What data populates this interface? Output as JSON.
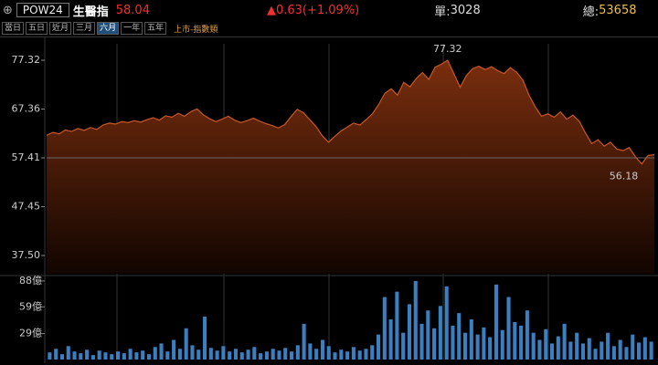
{
  "header": {
    "code": "POW24",
    "name": "生醫指",
    "price": "58.04",
    "change": "▲0.63(+1.09%)",
    "unit_label": "單:",
    "unit_value": "3028",
    "total_label": "總:",
    "total_value": "53658"
  },
  "toolbar": {
    "buttons": [
      "當日",
      "五日",
      "近月",
      "三月",
      "六月",
      "一年",
      "五年"
    ],
    "active": 4,
    "market": "上市-指數類"
  },
  "chart_data": [
    {
      "type": "area",
      "color": "#c8562a",
      "ylim": [
        33.78,
        80.67
      ],
      "yticks": [
        77.32,
        67.36,
        57.41,
        47.45,
        {
          "value": 37.5,
          "label": "37.50"
        }
      ],
      "baseline": 57.41,
      "values": [
        62.0,
        62.6,
        62.3,
        63.1,
        62.8,
        63.4,
        63.0,
        63.6,
        63.2,
        64.1,
        64.5,
        64.3,
        64.8,
        64.6,
        65.0,
        64.7,
        65.2,
        65.6,
        65.1,
        66.0,
        65.7,
        66.5,
        65.9,
        66.8,
        67.4,
        66.2,
        65.4,
        64.8,
        65.3,
        65.9,
        65.1,
        64.6,
        65.0,
        65.5,
        64.9,
        64.4,
        64.0,
        63.5,
        64.2,
        65.8,
        67.3,
        66.6,
        65.2,
        63.8,
        61.9,
        60.6,
        61.8,
        62.9,
        63.7,
        64.5,
        64.1,
        65.2,
        66.4,
        68.3,
        70.6,
        71.5,
        70.2,
        72.8,
        71.9,
        73.6,
        74.8,
        73.4,
        75.9,
        76.5,
        77.32,
        74.6,
        71.8,
        74.2,
        75.6,
        76.1,
        75.4,
        76.0,
        75.2,
        74.6,
        75.8,
        74.9,
        73.3,
        70.2,
        67.8,
        65.9,
        66.4,
        65.7,
        66.8,
        65.3,
        66.1,
        64.9,
        62.5,
        60.3,
        61.1,
        59.8,
        60.6,
        59.2,
        58.9,
        59.5,
        57.6,
        56.18,
        57.9,
        58.04
      ]
    },
    {
      "type": "bar",
      "color": "#3a7fc0",
      "ylim": [
        0,
        92
      ],
      "yticks": [
        {
          "value": 88,
          "label": "88億"
        },
        {
          "value": 59,
          "label": "59億"
        },
        {
          "value": 29,
          "label": "29億"
        }
      ],
      "values": [
        8,
        12,
        6,
        15,
        9,
        7,
        11,
        5,
        10,
        8,
        6,
        9,
        7,
        12,
        8,
        10,
        6,
        14,
        18,
        9,
        22,
        12,
        35,
        16,
        11,
        48,
        13,
        10,
        15,
        9,
        12,
        8,
        11,
        14,
        7,
        9,
        12,
        10,
        13,
        9,
        16,
        40,
        18,
        12,
        22,
        15,
        8,
        11,
        9,
        14,
        10,
        12,
        16,
        28,
        70,
        45,
        76,
        30,
        62,
        88,
        40,
        55,
        35,
        60,
        82,
        38,
        52,
        30,
        45,
        28,
        36,
        25,
        84,
        33,
        70,
        42,
        38,
        55,
        30,
        22,
        34,
        18,
        26,
        40,
        20,
        30,
        18,
        24,
        12,
        20,
        30,
        15,
        22,
        14,
        28,
        19,
        25,
        20
      ]
    }
  ]
}
